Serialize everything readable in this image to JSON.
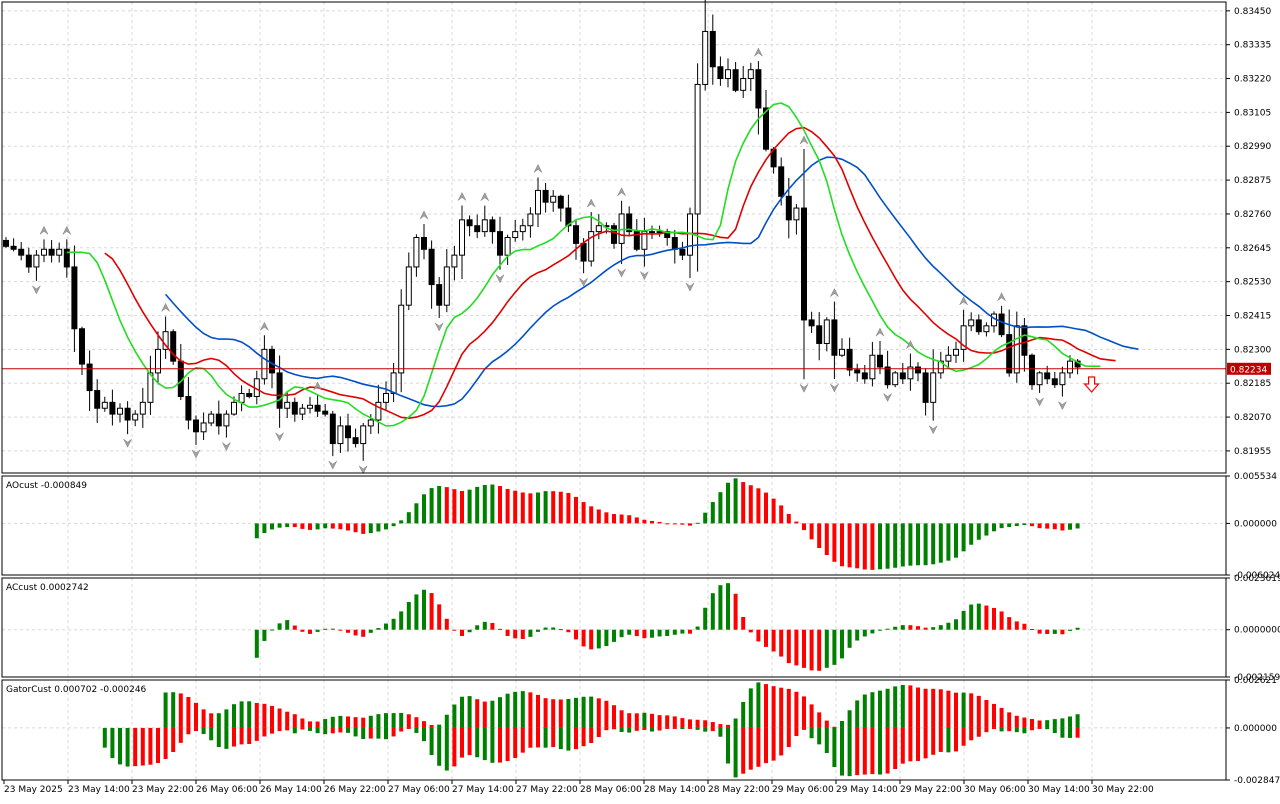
{
  "colors": {
    "up": "#008000",
    "down": "#ff0000",
    "ma_blue": "#0050c8",
    "ma_red": "#e00000",
    "ma_green": "#22dd22",
    "price_line": "#c00000",
    "grid": "#d8d8d8",
    "fractal": "#a0a0a0"
  },
  "current_price_label": "0.82234",
  "chart_data": [
    {
      "type": "candlestick",
      "pane": "price",
      "ylim": [
        0.8188,
        0.8348
      ],
      "y_ticks": [
        "0.83450",
        "0.83335",
        "0.83220",
        "0.83105",
        "0.82990",
        "0.82875",
        "0.82760",
        "0.82645",
        "0.82530",
        "0.82415",
        "0.82300",
        "0.82185",
        "0.82070",
        "0.81955"
      ],
      "y_tick_values": [
        0.8345,
        0.83335,
        0.8322,
        0.83105,
        0.8299,
        0.82875,
        0.8276,
        0.82645,
        0.8253,
        0.82415,
        0.823,
        0.82185,
        0.8207,
        0.81955
      ],
      "current_price": 0.82234,
      "close": [
        0.8265,
        0.8264,
        0.8262,
        0.8258,
        0.8262,
        0.8264,
        0.8262,
        0.8264,
        0.8258,
        0.8237,
        0.8225,
        0.8216,
        0.821,
        0.8212,
        0.8208,
        0.821,
        0.8206,
        0.8208,
        0.8212,
        0.8222,
        0.823,
        0.8236,
        0.8226,
        0.8214,
        0.8206,
        0.8202,
        0.8205,
        0.8208,
        0.8204,
        0.8208,
        0.8212,
        0.8215,
        0.8214,
        0.822,
        0.823,
        0.8222,
        0.821,
        0.8212,
        0.8208,
        0.821,
        0.8211,
        0.8209,
        0.8208,
        0.8198,
        0.8204,
        0.82,
        0.8198,
        0.8204,
        0.8206,
        0.8212,
        0.8215,
        0.8222,
        0.8245,
        0.8258,
        0.8268,
        0.8264,
        0.8252,
        0.8245,
        0.8258,
        0.8262,
        0.8274,
        0.8272,
        0.827,
        0.8274,
        0.827,
        0.8262,
        0.8268,
        0.827,
        0.8272,
        0.8276,
        0.8284,
        0.828,
        0.8282,
        0.8278,
        0.8272,
        0.8266,
        0.826,
        0.827,
        0.8272,
        0.8272,
        0.8266,
        0.8276,
        0.827,
        0.8264,
        0.827,
        0.827,
        0.827,
        0.8268,
        0.8264,
        0.8262,
        0.8276,
        0.832,
        0.8338,
        0.8326,
        0.8322,
        0.8325,
        0.8318,
        0.8322,
        0.8325,
        0.8312,
        0.8298,
        0.8292,
        0.8282,
        0.8274,
        0.8278,
        0.824,
        0.8238,
        0.8232,
        0.824,
        0.8228,
        0.823,
        0.8223,
        0.8222,
        0.822,
        0.8228,
        0.8224,
        0.8218,
        0.8222,
        0.822,
        0.8224,
        0.8222,
        0.8212,
        0.8222,
        0.8226,
        0.8228,
        0.823,
        0.8238,
        0.824,
        0.8236,
        0.8238,
        0.8242,
        0.8235,
        0.8222,
        0.8238,
        0.8228,
        0.8218,
        0.8222,
        0.822,
        0.8218,
        0.8222,
        0.8226,
        0.8224
      ]
    },
    {
      "type": "bar",
      "pane": "AOcust",
      "title": "AOcust -0.000849",
      "ylim": [
        -0.006024,
        0.005534
      ],
      "y_ticks": [
        "0.005534",
        "0.000000",
        "-0.006024"
      ],
      "y_tick_values": [
        0.005534,
        0,
        -0.006024
      ]
    },
    {
      "type": "bar",
      "pane": "ACcust",
      "title": "ACcust 0.0002742",
      "ylim": [
        -0.0021594,
        0.0023619
      ],
      "y_ticks": [
        "0.0023619",
        "0.0000000",
        "-0.0021594"
      ],
      "y_tick_values": [
        0.0023619,
        0,
        -0.0021594
      ]
    },
    {
      "type": "bar",
      "pane": "GatorCust",
      "title": "GatorCust 0.000702 -0.000246",
      "ylim": [
        -0.002847,
        0.002621
      ],
      "y_ticks": [
        "0.002621",
        "0.000000",
        "-0.002847"
      ],
      "y_tick_values": [
        0.002621,
        0,
        -0.002847
      ]
    }
  ],
  "x_ticks": [
    "23 May 2025",
    "23 May 14:00",
    "23 May 22:00",
    "26 May 06:00",
    "26 May 14:00",
    "26 May 22:00",
    "27 May 06:00",
    "27 May 14:00",
    "27 May 22:00",
    "28 May 06:00",
    "28 May 14:00",
    "28 May 22:00",
    "29 May 06:00",
    "29 May 14:00",
    "29 May 22:00",
    "30 May 06:00",
    "30 May 14:00",
    "30 May 22:00"
  ]
}
